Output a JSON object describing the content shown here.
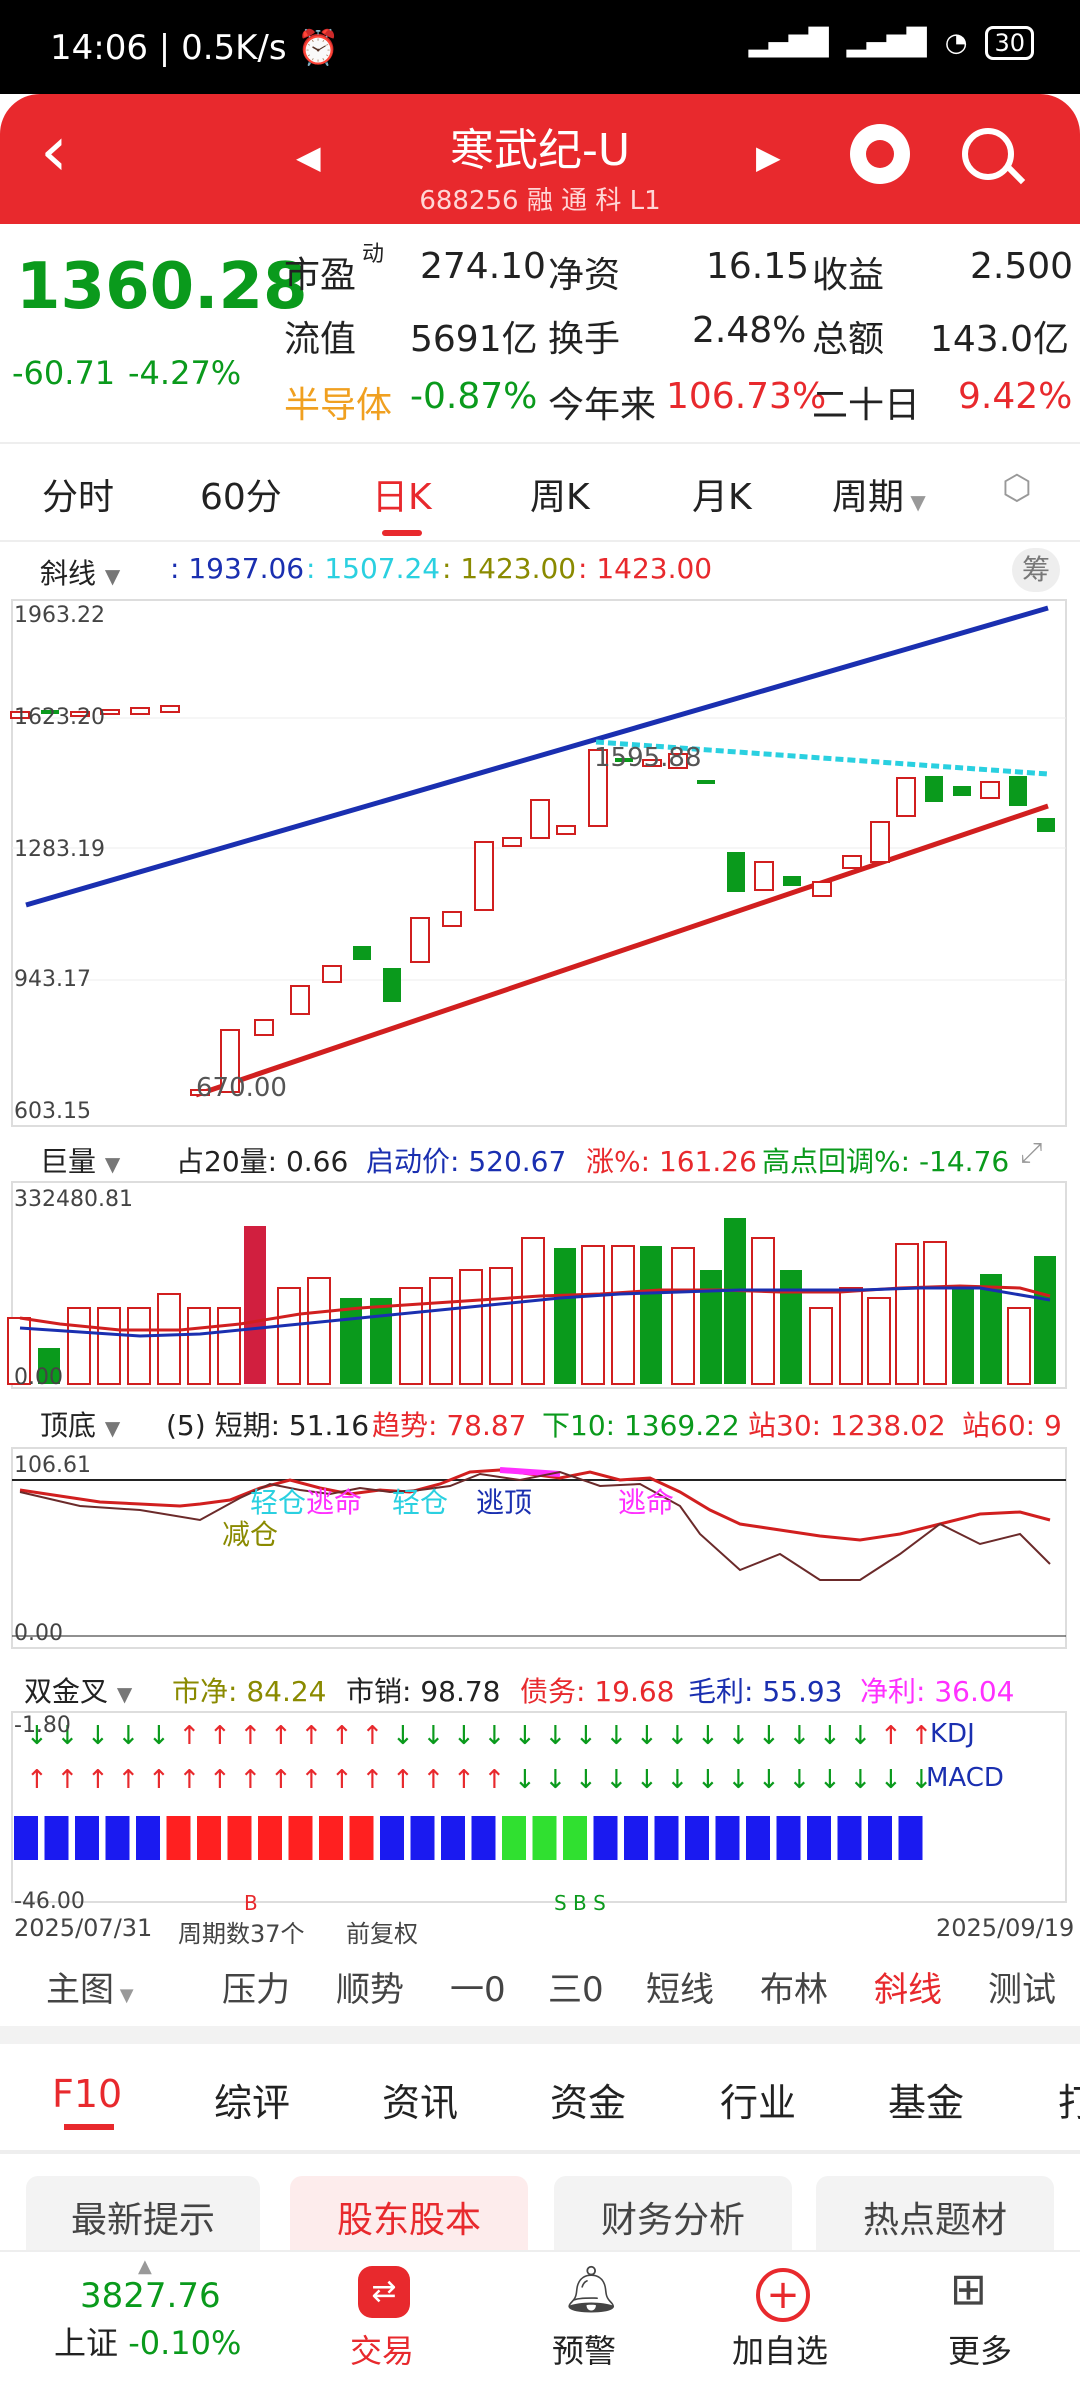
{
  "status": {
    "time": "14:06",
    "speed": "0.5K/s",
    "battery": "30"
  },
  "header": {
    "title": "寒武纪-U",
    "code": "688256",
    "badges": "融 通 科 L1"
  },
  "quote": {
    "price": "1360.28",
    "change": "-60.71",
    "change_pct": "-4.27%",
    "pe_label": "市盈",
    "pe_sup": "动",
    "pe": "274.10",
    "na_label": "净资",
    "na": "16.15",
    "eps_label": "收益",
    "eps": "2.500",
    "mv_label": "流值",
    "mv": "5691亿",
    "turn_label": "换手",
    "turn": "2.48%",
    "amt_label": "总额",
    "amt": "143.0亿",
    "sector": "半导体",
    "sector_chg": "-0.87%",
    "ytd_label": "今年来",
    "ytd": "106.73%",
    "d20_label": "二十日",
    "d20": "9.42%"
  },
  "tabs": [
    "分时",
    "60分",
    "日K",
    "周K",
    "月K",
    "周期"
  ],
  "line_info": {
    "label": "斜线",
    "v1": ": 1937.06",
    "v2": ": 1507.24",
    "v3": ": 1423.00",
    "v4": ": 1423.00",
    "chip": "筹"
  },
  "price_axis": {
    "t1": "1963.22",
    "t2": "1623.20",
    "t3": "1283.19",
    "t4": "943.17",
    "t5": "603.15",
    "high": "1595.88",
    "low": "670.00"
  },
  "vol_info": {
    "label": "巨量",
    "a": "占20量: 0.66",
    "b": "启动价: 520.67",
    "c": "涨%: 161.26",
    "d": "高点回调%: -14.76",
    "top": "332480.81",
    "zero": "0.00"
  },
  "td_info": {
    "label": "顶底",
    "a": "(5) 短期: 51.16",
    "b": "趋势: 78.87",
    "c": "下10: 1369.22",
    "d": "站30: 1238.02",
    "e": "站60: 9",
    "top": "106.61",
    "zero": "0.00",
    "l1": "轻仓",
    "l2": "逃命",
    "l3": "轻仓",
    "l4": "逃顶",
    "l5": "逃命",
    "l6": "减仓"
  },
  "sj_info": {
    "label": "双金叉",
    "a": "市净: 84.24",
    "b": "市销: 98.78",
    "c": "债务: 19.68",
    "d": "毛利: 55.93",
    "e": "净利: 36.04",
    "top": "-1.80",
    "bot": "-46.00",
    "kdj": "KDJ",
    "macd": "MACD",
    "s1": "B",
    "s2": "S B S"
  },
  "date_row": {
    "start": "2025/07/31",
    "count": "周期数37个",
    "adj": "前复权",
    "end": "2025/09/19"
  },
  "indicator_tabs": [
    "主图",
    "压力",
    "顺势",
    "一0",
    "三0",
    "短线",
    "布林",
    "斜线",
    "测试"
  ],
  "f10_tabs": [
    "F10",
    "综评",
    "资讯",
    "资金",
    "行业",
    "基金",
    "打"
  ],
  "chips": [
    "最新提示",
    "股东股本",
    "财务分析",
    "热点题材"
  ],
  "bottom_nav": {
    "index_val": "3827.76",
    "index_name": "上证",
    "index_chg": "-0.10%",
    "trade": "交易",
    "alert": "预警",
    "add": "加自选",
    "more": "更多"
  },
  "colors": {
    "red": "#e8292d",
    "green": "#0a9a1c"
  }
}
